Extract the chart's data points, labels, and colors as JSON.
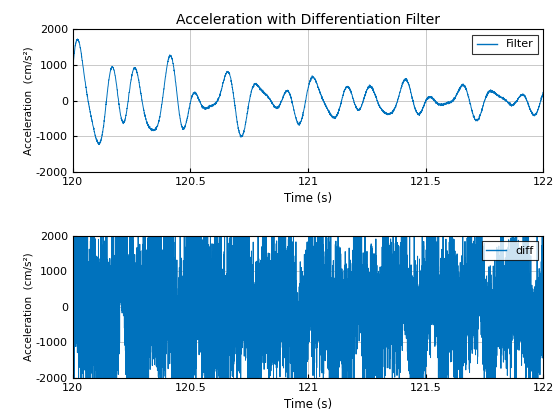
{
  "title": "Acceleration with Differentiation Filter",
  "xlabel": "Time (s)",
  "ylabel": "Acceleration  (cm/s²)",
  "xlim": [
    120,
    122
  ],
  "ylim": [
    -2000,
    2000
  ],
  "yticks": [
    -2000,
    -1000,
    0,
    1000,
    2000
  ],
  "xticks": [
    120,
    120.5,
    121,
    121.5,
    122
  ],
  "line_color": "#0072BD",
  "legend1": "Filter",
  "legend2": "diff",
  "bg_color": "#FFFFFF",
  "grid_color": "#C0C0C0",
  "seed": 42
}
